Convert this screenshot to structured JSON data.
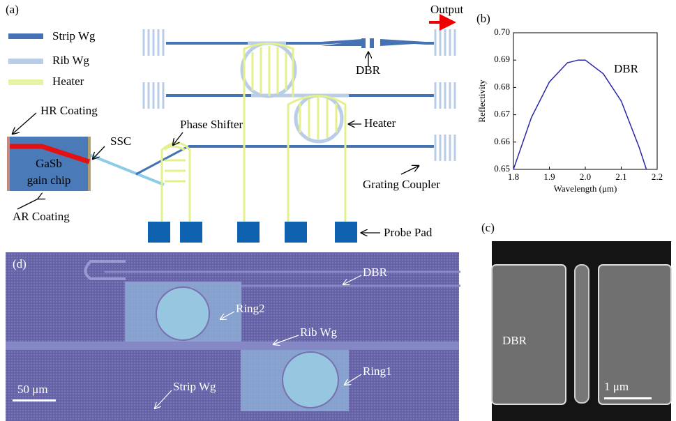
{
  "panel_a": {
    "label": "(a)",
    "legend": [
      "Strip Wg",
      "Rib Wg",
      "Heater"
    ],
    "hr_coating": "HR Coating",
    "ssc": "SSC",
    "chip_line1": "GaSb",
    "chip_line2": "gain chip",
    "ar_coating": "AR Coating",
    "phase_shifter": "Phase Shifter",
    "heater": "Heater",
    "dbr": "DBR",
    "output": "Output",
    "grating_coupler": "Grating Coupler",
    "probe_pad": "Probe Pad"
  },
  "chart_data": {
    "type": "line",
    "label": "(b)",
    "annotation": "DBR",
    "x_label": "Wavelength (μm)",
    "y_label": "Reflectivity",
    "xlim": [
      1.8,
      2.2
    ],
    "xticks": [
      1.8,
      1.9,
      {
        "value": 2,
        "label": "2.0"
      },
      2.1,
      2.2
    ],
    "ylim": [
      0.65,
      0.7
    ],
    "yticks": [
      0.65,
      0.66,
      0.67,
      0.68,
      0.69,
      {
        "value": 0.7,
        "label": "0.70"
      }
    ],
    "series": [
      {
        "color": "#2626a6",
        "x": [
          1.8,
          1.85,
          1.9,
          1.95,
          1.98,
          2.0,
          2.05,
          2.1,
          2.15,
          2.17
        ],
        "values": [
          0.65,
          0.669,
          0.682,
          0.689,
          0.69,
          0.69,
          0.685,
          0.675,
          0.658,
          0.65
        ]
      }
    ]
  },
  "panel_c": {
    "label": "(c)",
    "text": "DBR",
    "scale_bar": "1 μm"
  },
  "panel_d": {
    "label": "(d)",
    "dbr": "DBR",
    "ring2": "Ring2",
    "rib_wg": "Rib Wg",
    "ring1": "Ring1",
    "strip_wg": "Strip Wg",
    "scale_bar": "50 μm"
  }
}
